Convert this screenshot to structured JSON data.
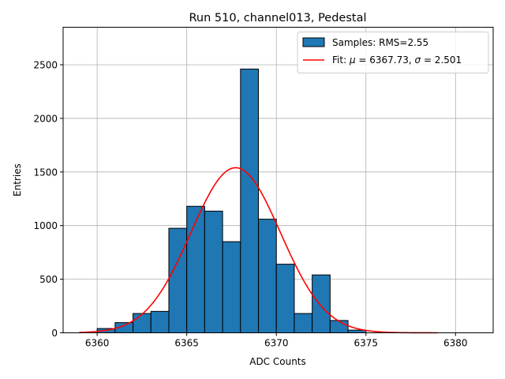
{
  "chart_data": {
    "type": "bar",
    "title": "Run 510, channel013, Pedestal",
    "xlabel": "ADC Counts",
    "ylabel": "Entries",
    "xlim": [
      6358.1,
      6382.1
    ],
    "ylim": [
      0,
      2850
    ],
    "grid": true,
    "legend_position": "top-right",
    "x_ticks": [
      6360,
      6365,
      6370,
      6375,
      6380
    ],
    "y_ticks": [
      0,
      500,
      1000,
      1500,
      2000,
      2500
    ],
    "histogram": {
      "name": "Samples: RMS=2.55",
      "bin_edges": [
        6360,
        6361,
        6362,
        6363,
        6364,
        6365,
        6366,
        6367,
        6368,
        6369,
        6370,
        6371,
        6372,
        6373,
        6374,
        6375
      ],
      "values": [
        40,
        95,
        180,
        200,
        975,
        1180,
        1135,
        850,
        2460,
        1060,
        640,
        180,
        540,
        115,
        25
      ],
      "color": "#1f77b4"
    },
    "fit": {
      "name_prefix": "Fit: ",
      "name_mu": "μ",
      "name_mu_value": " = 6367.73, ",
      "name_sigma": "σ",
      "name_sigma_value": " = 2.501",
      "mu": 6367.73,
      "sigma": 2.501,
      "amplitude": 1540,
      "x_range": [
        6359,
        6379
      ],
      "color": "#ff0000"
    }
  }
}
